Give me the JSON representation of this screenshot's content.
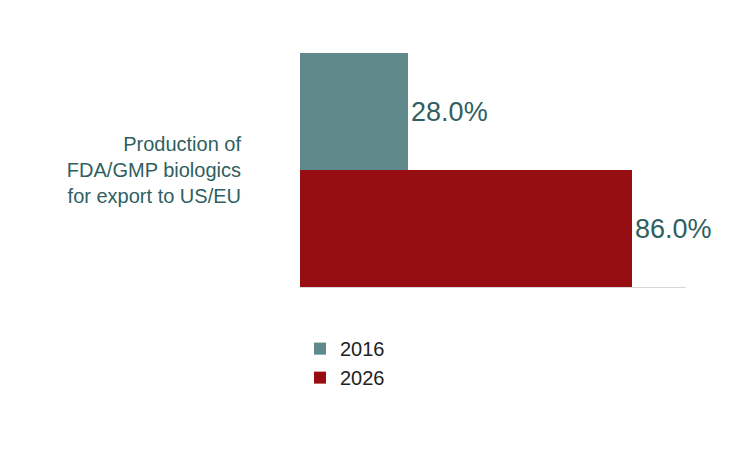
{
  "chart_data": {
    "type": "bar",
    "orientation": "horizontal",
    "categories": [
      "Production of FDA/GMP biologics for export to US/EU"
    ],
    "series": [
      {
        "name": "2016",
        "color": "#5f898a",
        "values": [
          28
        ],
        "value_labels": [
          "28.0%"
        ]
      },
      {
        "name": "2026",
        "color": "#960e12",
        "values": [
          86
        ],
        "value_labels": [
          "86.0%"
        ]
      }
    ],
    "xlim": [
      0,
      100
    ],
    "grid": false,
    "legend": "bottom",
    "data_labels": true,
    "tick_labels": "y"
  }
}
